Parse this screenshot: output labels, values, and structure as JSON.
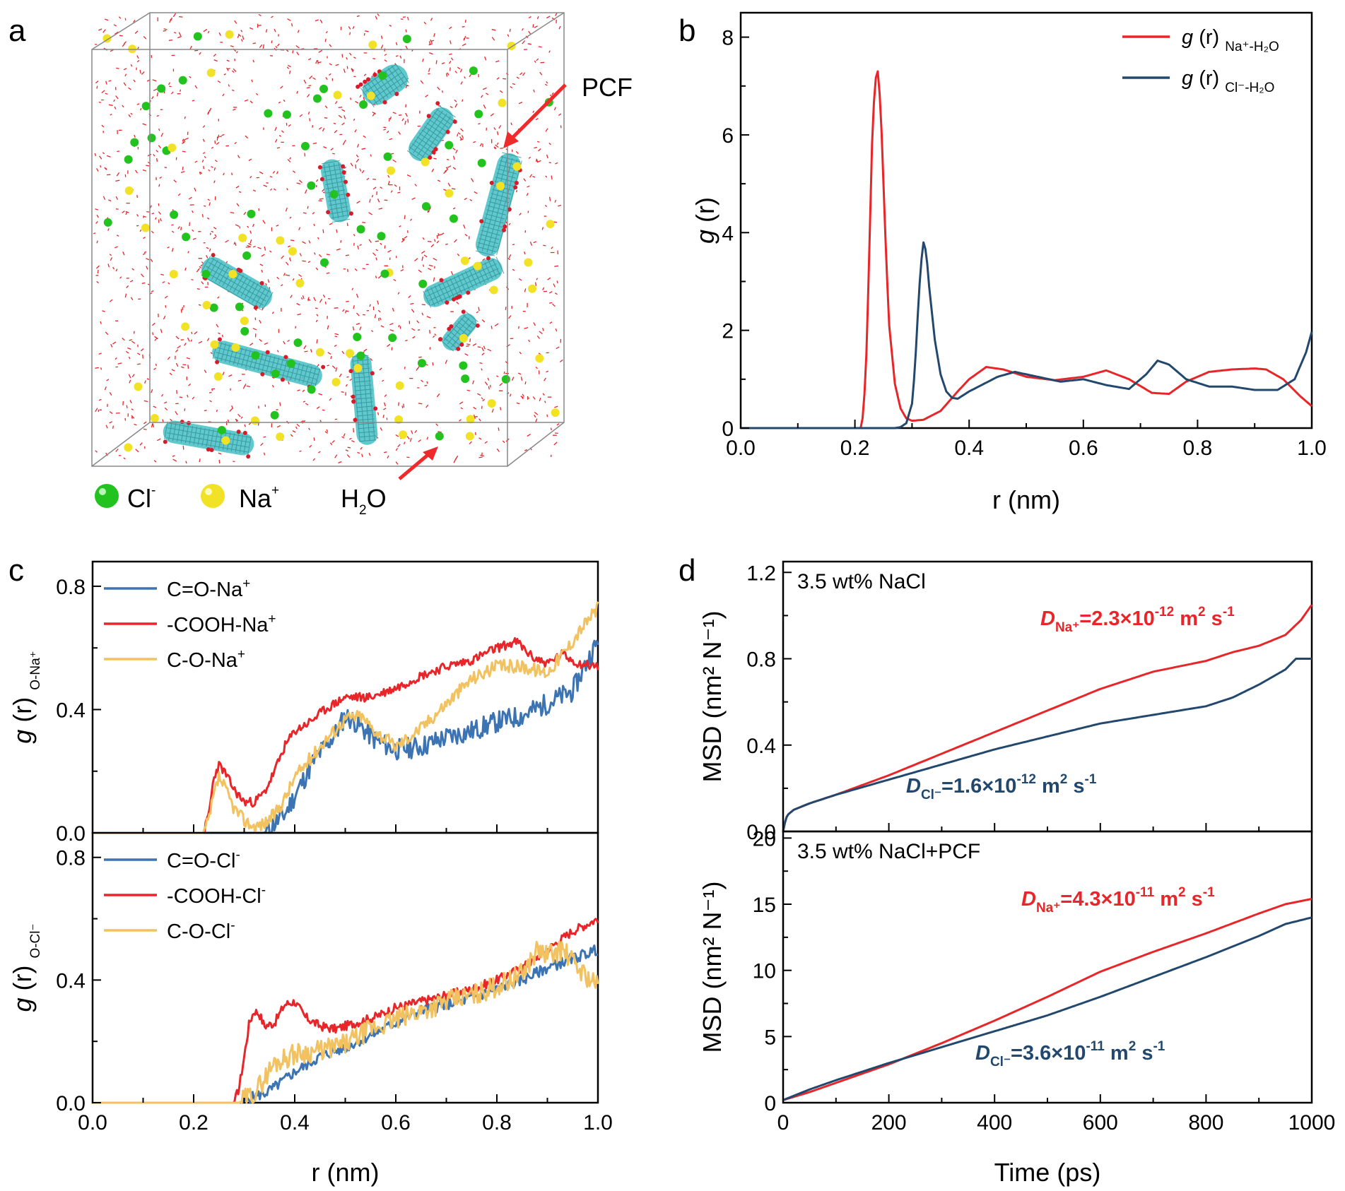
{
  "panels": {
    "a": {
      "letter": "a",
      "labels": {
        "pcf": "PCF",
        "cl": "Cl",
        "cl_sup": "-",
        "na": "Na",
        "na_sup": "+",
        "h2o_h": "H",
        "h2o_sub": "2",
        "h2o_o": "O"
      },
      "colors": {
        "water": "#e8262a",
        "cl": "#22c21f",
        "na": "#f2e225",
        "pcf": "#4fc3c9",
        "arrow": "#ee2a2a"
      }
    },
    "b": {
      "letter": "b"
    },
    "c": {
      "letter": "c"
    },
    "d": {
      "letter": "d"
    }
  },
  "colors": {
    "red": "#e8262a",
    "blue": "#23486e",
    "lightblue": "#3b73b3",
    "gold": "#f2c260"
  },
  "chart_data": [
    {
      "id": "b",
      "type": "line",
      "title": "",
      "xlabel": "r (nm)",
      "ylabel_italic": "g",
      "ylabel_rest": " (r)",
      "xlim": [
        0,
        1.0
      ],
      "ylim": [
        0,
        8.5
      ],
      "xticks": [
        "0.0",
        "0.2",
        "0.4",
        "0.6",
        "0.8",
        "1.0"
      ],
      "yticks": [
        "0",
        "2",
        "4",
        "6",
        "8"
      ],
      "series": [
        {
          "name": "g (r) Na+-H2O",
          "legend_italic": "g",
          "legend_rest": " (r)",
          "legend_sub": "Na⁺-H₂O",
          "color": "#e8262a",
          "x": [
            0,
            0.21,
            0.215,
            0.22,
            0.225,
            0.23,
            0.235,
            0.24,
            0.245,
            0.25,
            0.255,
            0.26,
            0.27,
            0.28,
            0.29,
            0.3,
            0.32,
            0.35,
            0.38,
            0.4,
            0.43,
            0.46,
            0.5,
            0.55,
            0.6,
            0.64,
            0.68,
            0.72,
            0.75,
            0.78,
            0.82,
            0.86,
            0.9,
            0.92,
            0.95,
            0.98,
            1.0
          ],
          "y": [
            0,
            0,
            0.3,
            1.5,
            3.5,
            5.8,
            7.1,
            7.3,
            6.6,
            5.0,
            3.4,
            2.1,
            0.9,
            0.4,
            0.2,
            0.15,
            0.17,
            0.35,
            0.75,
            1.0,
            1.25,
            1.2,
            1.05,
            0.98,
            1.05,
            1.18,
            1.0,
            0.72,
            0.7,
            0.95,
            1.15,
            1.2,
            1.22,
            1.2,
            1.0,
            0.65,
            0.45
          ]
        },
        {
          "name": "g (r) Cl-H2O",
          "legend_italic": "g",
          "legend_rest": " (r)",
          "legend_sub": "Cl⁻-H₂O",
          "color": "#23486e",
          "x": [
            0,
            0.27,
            0.28,
            0.29,
            0.3,
            0.305,
            0.31,
            0.315,
            0.32,
            0.325,
            0.33,
            0.34,
            0.35,
            0.36,
            0.37,
            0.38,
            0.4,
            0.45,
            0.48,
            0.52,
            0.56,
            0.6,
            0.64,
            0.68,
            0.71,
            0.73,
            0.75,
            0.78,
            0.82,
            0.86,
            0.9,
            0.94,
            0.97,
            0.99,
            1.0
          ],
          "y": [
            0,
            0,
            0.02,
            0.1,
            0.5,
            1.2,
            2.3,
            3.3,
            3.8,
            3.6,
            2.9,
            1.8,
            1.1,
            0.75,
            0.62,
            0.6,
            0.75,
            1.05,
            1.15,
            1.05,
            0.95,
            1.0,
            0.88,
            0.8,
            1.1,
            1.38,
            1.3,
            1.0,
            0.85,
            0.85,
            0.78,
            0.78,
            1.0,
            1.55,
            1.97
          ]
        }
      ]
    },
    {
      "id": "c-top",
      "type": "line",
      "xlabel": "",
      "ylabel_italic": "g",
      "ylabel_rest": " (r)",
      "ylabel_sub": "O-Na⁺",
      "xlim": [
        0,
        1.0
      ],
      "ylim": [
        0,
        0.88
      ],
      "yticks": [
        "0.0",
        "0.4",
        "0.8"
      ],
      "series": [
        {
          "name": "C=O-Na⁺",
          "color": "#3b73b3",
          "noise": 0.035,
          "seed": 11,
          "x": [
            0,
            0.34,
            0.36,
            0.38,
            0.4,
            0.44,
            0.48,
            0.5,
            0.52,
            0.56,
            0.6,
            0.65,
            0.7,
            0.75,
            0.8,
            0.85,
            0.9,
            0.95,
            0.98,
            1.0
          ],
          "y": [
            0,
            0,
            0.03,
            0.06,
            0.12,
            0.24,
            0.32,
            0.38,
            0.36,
            0.3,
            0.27,
            0.28,
            0.31,
            0.33,
            0.36,
            0.38,
            0.42,
            0.46,
            0.56,
            0.62
          ]
        },
        {
          "name": "-COOH-Na⁺",
          "color": "#e8262a",
          "noise": 0.015,
          "seed": 23,
          "x": [
            0,
            0.22,
            0.23,
            0.24,
            0.25,
            0.26,
            0.28,
            0.3,
            0.32,
            0.34,
            0.36,
            0.38,
            0.4,
            0.43,
            0.46,
            0.5,
            0.55,
            0.6,
            0.65,
            0.7,
            0.75,
            0.8,
            0.84,
            0.87,
            0.9,
            0.93,
            0.96,
            1.0
          ],
          "y": [
            0,
            0,
            0.06,
            0.18,
            0.22,
            0.2,
            0.14,
            0.1,
            0.1,
            0.13,
            0.2,
            0.28,
            0.33,
            0.36,
            0.4,
            0.44,
            0.44,
            0.47,
            0.51,
            0.54,
            0.56,
            0.6,
            0.62,
            0.57,
            0.55,
            0.58,
            0.55,
            0.54
          ]
        },
        {
          "name": "C-O-Na⁺",
          "color": "#f2c260",
          "noise": 0.022,
          "seed": 37,
          "x": [
            0,
            0.22,
            0.23,
            0.24,
            0.25,
            0.26,
            0.28,
            0.3,
            0.32,
            0.34,
            0.36,
            0.38,
            0.4,
            0.43,
            0.46,
            0.5,
            0.53,
            0.56,
            0.6,
            0.65,
            0.7,
            0.75,
            0.8,
            0.85,
            0.9,
            0.94,
            0.97,
            1.0
          ],
          "y": [
            0,
            0,
            0.04,
            0.12,
            0.18,
            0.15,
            0.08,
            0.04,
            0.02,
            0.03,
            0.06,
            0.11,
            0.18,
            0.24,
            0.3,
            0.37,
            0.38,
            0.33,
            0.28,
            0.34,
            0.42,
            0.5,
            0.54,
            0.54,
            0.52,
            0.6,
            0.67,
            0.73
          ]
        }
      ]
    },
    {
      "id": "c-bottom",
      "type": "line",
      "xlabel": "r (nm)",
      "ylabel_italic": "g",
      "ylabel_rest": " (r)",
      "ylabel_sub": "O-Cl⁻",
      "xlim": [
        0,
        1.0
      ],
      "ylim": [
        0,
        0.88
      ],
      "xticks": [
        "0.0",
        "0.2",
        "0.4",
        "0.6",
        "0.8",
        "1.0"
      ],
      "yticks": [
        "0.0",
        "0.4",
        "0.8"
      ],
      "series": [
        {
          "name": "C=O-Cl⁻",
          "color": "#3b73b3",
          "noise": 0.018,
          "seed": 5,
          "x": [
            0,
            0.29,
            0.32,
            0.34,
            0.36,
            0.4,
            0.45,
            0.5,
            0.55,
            0.6,
            0.65,
            0.7,
            0.75,
            0.8,
            0.85,
            0.9,
            0.95,
            1.0
          ],
          "y": [
            0,
            0,
            0.02,
            0.03,
            0.05,
            0.1,
            0.15,
            0.18,
            0.22,
            0.26,
            0.3,
            0.32,
            0.34,
            0.37,
            0.4,
            0.44,
            0.47,
            0.5
          ]
        },
        {
          "name": "-COOH-Cl⁻",
          "color": "#e8262a",
          "noise": 0.015,
          "seed": 17,
          "x": [
            0,
            0.28,
            0.29,
            0.3,
            0.31,
            0.32,
            0.33,
            0.34,
            0.36,
            0.38,
            0.4,
            0.42,
            0.45,
            0.48,
            0.52,
            0.56,
            0.6,
            0.65,
            0.7,
            0.75,
            0.8,
            0.85,
            0.9,
            0.95,
            1.0
          ],
          "y": [
            0,
            0,
            0.05,
            0.15,
            0.26,
            0.3,
            0.29,
            0.25,
            0.26,
            0.32,
            0.33,
            0.28,
            0.25,
            0.24,
            0.26,
            0.28,
            0.31,
            0.33,
            0.35,
            0.37,
            0.4,
            0.44,
            0.5,
            0.56,
            0.6
          ]
        },
        {
          "name": "C-O-Cl⁻",
          "color": "#f2c260",
          "noise": 0.035,
          "seed": 29,
          "x": [
            0,
            0.29,
            0.32,
            0.34,
            0.36,
            0.4,
            0.45,
            0.5,
            0.55,
            0.6,
            0.65,
            0.7,
            0.75,
            0.8,
            0.85,
            0.88,
            0.9,
            0.93,
            0.96,
            1.0
          ],
          "y": [
            0,
            0,
            0.03,
            0.08,
            0.13,
            0.16,
            0.17,
            0.19,
            0.24,
            0.27,
            0.3,
            0.33,
            0.35,
            0.38,
            0.42,
            0.5,
            0.48,
            0.5,
            0.44,
            0.38
          ]
        }
      ]
    },
    {
      "id": "d-top",
      "type": "line",
      "label": "3.5 wt% NaCl",
      "xlabel": "",
      "ylabel": "MSD (nm² N⁻¹)",
      "xlim": [
        0,
        1000
      ],
      "ylim": [
        0,
        1.25
      ],
      "yticks": [
        "0.0",
        "0.4",
        "0.8",
        "1.2"
      ],
      "series": [
        {
          "name": "Na⁺",
          "color": "#e8262a",
          "x": [
            0,
            5,
            10,
            20,
            50,
            100,
            200,
            300,
            400,
            500,
            600,
            700,
            800,
            850,
            900,
            950,
            980,
            1000
          ],
          "y": [
            0,
            0.06,
            0.08,
            0.1,
            0.13,
            0.17,
            0.26,
            0.36,
            0.46,
            0.56,
            0.66,
            0.74,
            0.79,
            0.83,
            0.86,
            0.91,
            0.98,
            1.05
          ]
        },
        {
          "name": "Cl⁻",
          "color": "#23486e",
          "x": [
            0,
            5,
            10,
            20,
            50,
            100,
            200,
            300,
            400,
            500,
            600,
            700,
            800,
            850,
            900,
            950,
            970,
            1000
          ],
          "y": [
            0,
            0.06,
            0.08,
            0.1,
            0.13,
            0.17,
            0.24,
            0.31,
            0.38,
            0.44,
            0.5,
            0.54,
            0.58,
            0.62,
            0.68,
            0.75,
            0.8,
            0.8
          ]
        }
      ],
      "annotations": [
        {
          "D": "D",
          "sub": "Na⁺",
          "text": "=2.3×10",
          "exp": "-12",
          "unit": " m",
          "unit_exp": "2",
          "unit2": " s",
          "unit2_exp": "-1",
          "color": "#e8262a"
        },
        {
          "D": "D",
          "sub": "Cl⁻",
          "text": "=1.6×10",
          "exp": "-12",
          "unit": " m",
          "unit_exp": "2",
          "unit2": " s",
          "unit2_exp": "-1",
          "color": "#23486e"
        }
      ]
    },
    {
      "id": "d-bottom",
      "type": "line",
      "label": "3.5 wt% NaCl+PCF",
      "xlabel": "Time (ps)",
      "ylabel": "MSD (nm² N⁻¹)",
      "xlim": [
        0,
        1000
      ],
      "ylim": [
        0,
        20.5
      ],
      "xticks": [
        "0",
        "200",
        "400",
        "600",
        "800",
        "1000"
      ],
      "yticks": [
        "0",
        "5",
        "10",
        "15",
        "20"
      ],
      "series": [
        {
          "name": "Na⁺",
          "color": "#e8262a",
          "x": [
            0,
            50,
            100,
            200,
            300,
            400,
            500,
            600,
            700,
            800,
            900,
            950,
            1000
          ],
          "y": [
            0.2,
            0.8,
            1.5,
            2.9,
            4.5,
            6.2,
            8.0,
            9.9,
            11.4,
            12.8,
            14.3,
            15.0,
            15.4
          ]
        },
        {
          "name": "Cl⁻",
          "color": "#23486e",
          "x": [
            0,
            50,
            100,
            200,
            300,
            400,
            500,
            600,
            700,
            800,
            900,
            950,
            1000
          ],
          "y": [
            0.2,
            1.0,
            1.7,
            3.0,
            4.2,
            5.4,
            6.6,
            8.0,
            9.5,
            11.0,
            12.6,
            13.5,
            14.0
          ]
        }
      ],
      "annotations": [
        {
          "D": "D",
          "sub": "Na⁺",
          "text": "=4.3×10",
          "exp": "-11",
          "unit": " m",
          "unit_exp": "2",
          "unit2": " s",
          "unit2_exp": "-1",
          "color": "#e8262a"
        },
        {
          "D": "D",
          "sub": "Cl⁻",
          "text": "=3.6×10",
          "exp": "-11",
          "unit": " m",
          "unit_exp": "2",
          "unit2": " s",
          "unit2_exp": "-1",
          "color": "#23486e"
        }
      ]
    }
  ]
}
